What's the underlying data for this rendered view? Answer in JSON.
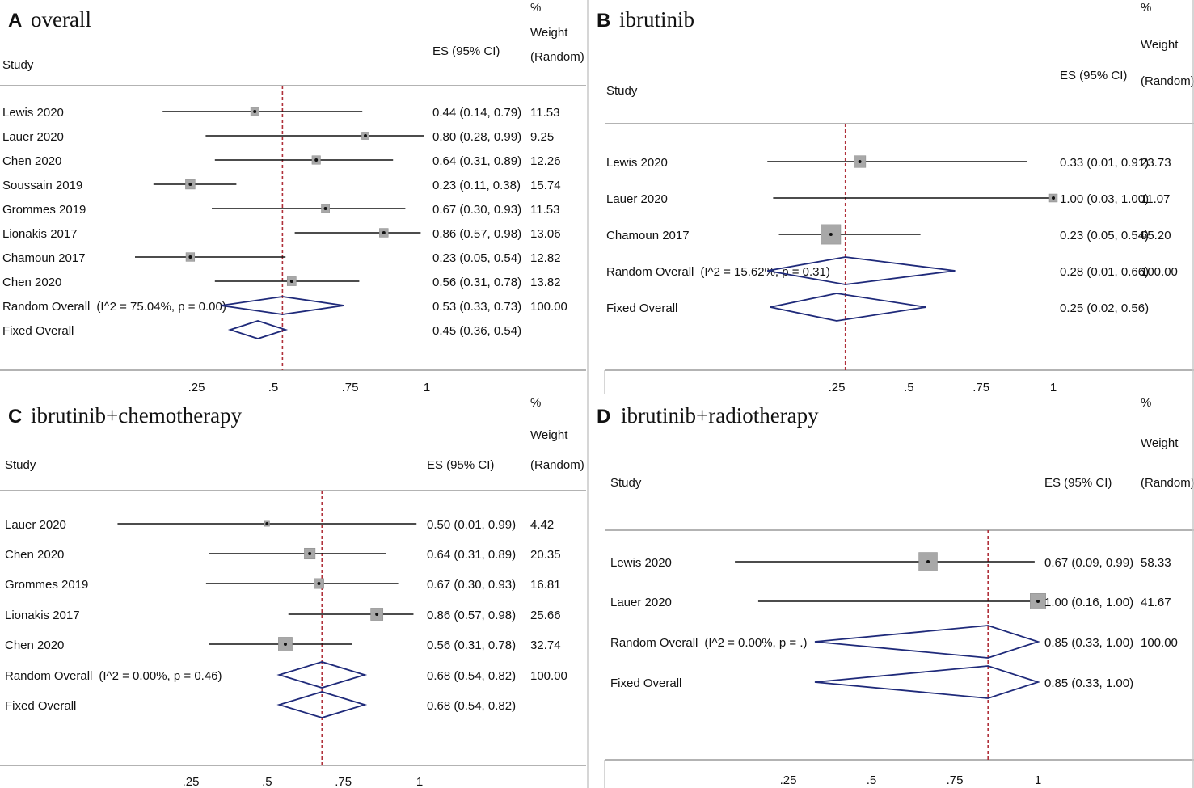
{
  "chart_data": [
    {
      "type": "forest",
      "letter": "A",
      "title": "overall",
      "study_header": "Study",
      "es_header": "ES (95% CI)",
      "weight_header": [
        "%",
        "Weight",
        "(Random)"
      ],
      "ticks": [
        ".25",
        ".5",
        ".75",
        "1"
      ],
      "tick_values": [
        0.25,
        0.5,
        0.75,
        1
      ],
      "reference_line": 0.53,
      "studies": [
        {
          "label": "Lewis 2020",
          "es": 0.44,
          "lo": 0.14,
          "hi": 0.79,
          "ci": "0.44 (0.14, 0.79)",
          "weight": "11.53"
        },
        {
          "label": "Lauer 2020",
          "es": 0.8,
          "lo": 0.28,
          "hi": 0.99,
          "ci": "0.80 (0.28, 0.99)",
          "weight": "9.25"
        },
        {
          "label": "Chen 2020",
          "es": 0.64,
          "lo": 0.31,
          "hi": 0.89,
          "ci": "0.64 (0.31, 0.89)",
          "weight": "12.26"
        },
        {
          "label": "Soussain 2019",
          "es": 0.23,
          "lo": 0.11,
          "hi": 0.38,
          "ci": "0.23 (0.11, 0.38)",
          "weight": "15.74"
        },
        {
          "label": "Grommes 2019",
          "es": 0.67,
          "lo": 0.3,
          "hi": 0.93,
          "ci": "0.67 (0.30, 0.93)",
          "weight": "11.53"
        },
        {
          "label": "Lionakis 2017",
          "es": 0.86,
          "lo": 0.57,
          "hi": 0.98,
          "ci": "0.86 (0.57, 0.98)",
          "weight": "13.06"
        },
        {
          "label": "Chamoun 2017",
          "es": 0.23,
          "lo": 0.05,
          "hi": 0.54,
          "ci": "0.23 (0.05, 0.54)",
          "weight": "12.82"
        },
        {
          "label": "Chen 2020",
          "es": 0.56,
          "lo": 0.31,
          "hi": 0.78,
          "ci": "0.56 (0.31, 0.78)",
          "weight": "13.82"
        }
      ],
      "pooled": [
        {
          "label": "Random Overall",
          "note": "(I^2 = 75.04%, p = 0.00)",
          "es": 0.53,
          "lo": 0.33,
          "hi": 0.73,
          "ci": "0.53 (0.33, 0.73)",
          "weight": "100.00"
        },
        {
          "label": "Fixed Overall",
          "note": "",
          "es": 0.45,
          "lo": 0.36,
          "hi": 0.54,
          "ci": "0.45 (0.36, 0.54)",
          "weight": ""
        }
      ]
    },
    {
      "type": "forest",
      "letter": "B",
      "title": "ibrutinib",
      "study_header": "Study",
      "es_header": "ES (95% CI)",
      "weight_header": [
        "%",
        "Weight",
        "(Random)"
      ],
      "ticks": [
        ".25",
        ".5",
        ".75",
        "1"
      ],
      "tick_values": [
        0.25,
        0.5,
        0.75,
        1
      ],
      "reference_line": 0.28,
      "studies": [
        {
          "label": "Lewis 2020",
          "es": 0.33,
          "lo": 0.01,
          "hi": 0.91,
          "ci": "0.33 (0.01, 0.91)",
          "weight": "23.73"
        },
        {
          "label": "Lauer 2020",
          "es": 1.0,
          "lo": 0.03,
          "hi": 1.0,
          "ci": "1.00 (0.03, 1.00)",
          "weight": "11.07"
        },
        {
          "label": "Chamoun 2017",
          "es": 0.23,
          "lo": 0.05,
          "hi": 0.54,
          "ci": "0.23 (0.05, 0.54)",
          "weight": "65.20"
        }
      ],
      "pooled": [
        {
          "label": "Random Overall",
          "note": "(I^2 = 15.62%, p = 0.31)",
          "es": 0.28,
          "lo": 0.01,
          "hi": 0.66,
          "ci": "0.28 (0.01, 0.66)",
          "weight": "100.00"
        },
        {
          "label": "Fixed Overall",
          "note": "",
          "es": 0.25,
          "lo": 0.02,
          "hi": 0.56,
          "ci": "0.25 (0.02, 0.56)",
          "weight": ""
        }
      ]
    },
    {
      "type": "forest",
      "letter": "C",
      "title": "ibrutinib+chemotherapy",
      "study_header": "Study",
      "es_header": "ES (95% CI)",
      "weight_header": [
        "%",
        "Weight",
        "(Random)"
      ],
      "ticks": [
        ".25",
        ".5",
        ".75",
        "1"
      ],
      "tick_values": [
        0.25,
        0.5,
        0.75,
        1
      ],
      "reference_line": 0.68,
      "studies": [
        {
          "label": "Lauer 2020",
          "es": 0.5,
          "lo": 0.01,
          "hi": 0.99,
          "ci": "0.50 (0.01, 0.99)",
          "weight": "4.42"
        },
        {
          "label": "Chen 2020",
          "es": 0.64,
          "lo": 0.31,
          "hi": 0.89,
          "ci": "0.64 (0.31, 0.89)",
          "weight": "20.35"
        },
        {
          "label": "Grommes 2019",
          "es": 0.67,
          "lo": 0.3,
          "hi": 0.93,
          "ci": "0.67 (0.30, 0.93)",
          "weight": "16.81"
        },
        {
          "label": "Lionakis 2017",
          "es": 0.86,
          "lo": 0.57,
          "hi": 0.98,
          "ci": "0.86 (0.57, 0.98)",
          "weight": "25.66"
        },
        {
          "label": "Chen 2020",
          "es": 0.56,
          "lo": 0.31,
          "hi": 0.78,
          "ci": "0.56 (0.31, 0.78)",
          "weight": "32.74"
        }
      ],
      "pooled": [
        {
          "label": "Random Overall",
          "note": "(I^2 = 0.00%, p = 0.46)",
          "es": 0.68,
          "lo": 0.54,
          "hi": 0.82,
          "ci": "0.68 (0.54, 0.82)",
          "weight": "100.00"
        },
        {
          "label": "Fixed Overall",
          "note": "",
          "es": 0.68,
          "lo": 0.54,
          "hi": 0.82,
          "ci": "0.68 (0.54, 0.82)",
          "weight": ""
        }
      ]
    },
    {
      "type": "forest",
      "letter": "D",
      "title": "ibrutinib+radiotherapy",
      "study_header": "Study",
      "es_header": "ES (95% CI)",
      "weight_header": [
        "%",
        "Weight",
        "(Random)"
      ],
      "ticks": [
        ".25",
        ".5",
        ".75",
        "1"
      ],
      "tick_values": [
        0.25,
        0.5,
        0.75,
        1
      ],
      "reference_line": 0.85,
      "studies": [
        {
          "label": "Lewis 2020",
          "es": 0.67,
          "lo": 0.09,
          "hi": 0.99,
          "ci": "0.67 (0.09, 0.99)",
          "weight": "58.33"
        },
        {
          "label": "Lauer 2020",
          "es": 1.0,
          "lo": 0.16,
          "hi": 1.0,
          "ci": "1.00 (0.16, 1.00)",
          "weight": "41.67"
        }
      ],
      "pooled": [
        {
          "label": "Random Overall",
          "note": "(I^2 = 0.00%, p = .)",
          "es": 0.85,
          "lo": 0.33,
          "hi": 1.0,
          "ci": "0.85 (0.33, 1.00)",
          "weight": "100.00"
        },
        {
          "label": "Fixed Overall",
          "note": "",
          "es": 0.85,
          "lo": 0.33,
          "hi": 1.0,
          "ci": "0.85 (0.33, 1.00)",
          "weight": ""
        }
      ]
    }
  ]
}
